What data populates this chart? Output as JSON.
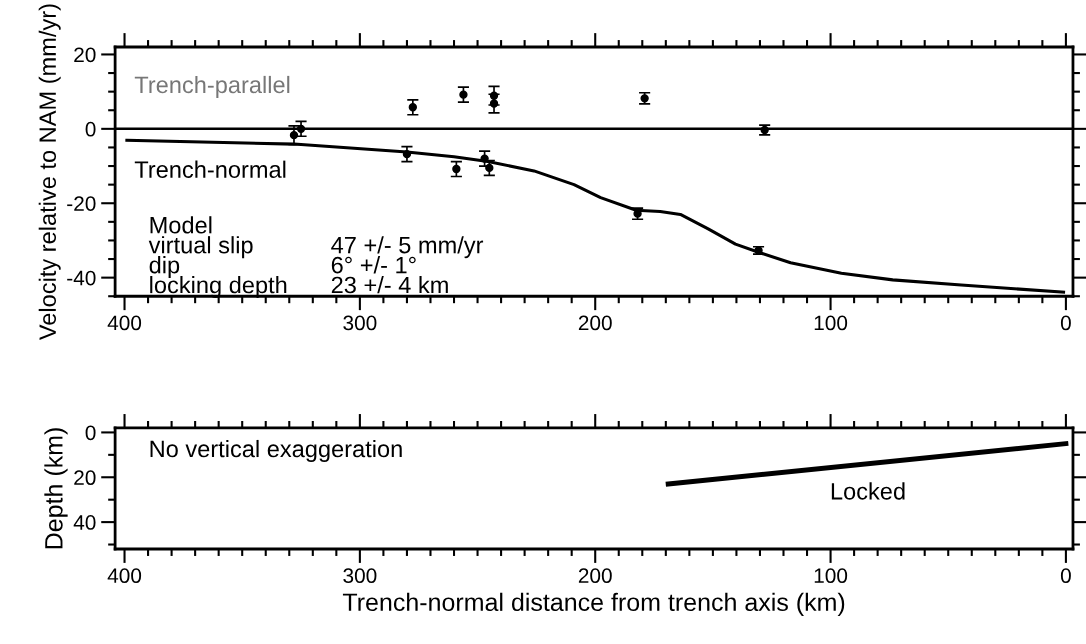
{
  "chart_data": [
    {
      "type": "scatter",
      "ylabel": "Velocity relative to NAM (mm/yr)",
      "xlim": [
        404,
        -3
      ],
      "xticks": [
        400,
        300,
        200,
        100,
        0
      ],
      "ylim": [
        -45,
        22
      ],
      "yticks": [
        20,
        0,
        -20,
        -40
      ],
      "grid": false,
      "legend": false,
      "marker": "circle",
      "series": [
        {
          "name": "Trench-parallel",
          "type": "scatter",
          "color": "#000000",
          "x": [
            325,
            277.5,
            256,
            243,
            243,
            179,
            128
          ],
          "values": [
            0,
            5.8,
            9.2,
            8.9,
            6.8,
            8.2,
            -0.3
          ],
          "errors": [
            2,
            2,
            2,
            2.5,
            2.5,
            1.5,
            1.3
          ]
        },
        {
          "name": "Trench-normal",
          "type": "scatter",
          "color": "#000000",
          "x": [
            328,
            280,
            259,
            247,
            245,
            182,
            130.6
          ],
          "values": [
            -1.7,
            -6.8,
            -10.8,
            -8,
            -10.5,
            -22.8,
            -32.7
          ],
          "errors": [
            2.5,
            2,
            2,
            2,
            2,
            1.5,
            1
          ]
        },
        {
          "type": "line",
          "color": "#000000",
          "marker": "none",
          "x": [
            399,
            328,
            280,
            260,
            245.6,
            226,
            209,
            197.7,
            182.6,
            172.4,
            163.8,
            152,
            140.4,
            130,
            117,
            95.4,
            73.6,
            44.5,
            1
          ],
          "values": [
            -3.1,
            -4.1,
            -6.2,
            -7.5,
            -8.8,
            -11.3,
            -15,
            -18.5,
            -21.9,
            -22.2,
            -23,
            -26.9,
            -31,
            -33.3,
            -36,
            -38.8,
            -40.6,
            -42,
            -43.9
          ]
        }
      ],
      "ref_lines": [
        {
          "axis": "y",
          "value": 0,
          "color": "#000000",
          "line_style": "solid"
        }
      ],
      "annotations": [
        "Model",
        "virtual slip",
        "47 +/- 5 mm/yr",
        "dip",
        "6° +/- 1°",
        "locking depth",
        "23 +/- 4 km"
      ]
    },
    {
      "type": "line",
      "xlabel": "Trench-normal distance from trench axis (km)",
      "ylabel": "Depth (km)",
      "xlim": [
        404,
        -3
      ],
      "xticks": [
        400,
        300,
        200,
        100,
        0
      ],
      "ylim": [
        52,
        -2
      ],
      "yticks": [
        0,
        20,
        40
      ],
      "grid": false,
      "legend": false,
      "series": [
        {
          "color": "#000000",
          "x": [
            169,
            0
          ],
          "values": [
            23,
            5
          ]
        }
      ],
      "annotations": [
        "No vertical exaggeration",
        "Locked"
      ]
    }
  ]
}
